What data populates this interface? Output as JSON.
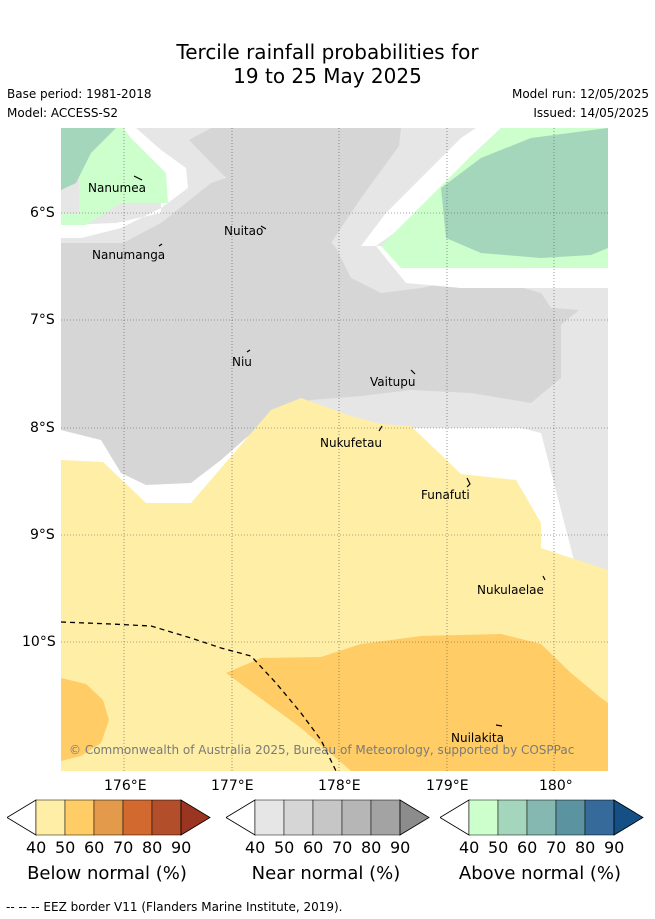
{
  "title": {
    "line1": "Tercile rainfall probabilities for",
    "line2": "19 to 25 May 2025"
  },
  "meta": {
    "base_period": "Base period: 1981-2018",
    "model": "Model: ACCESS-S2",
    "model_run": "Model run: 12/05/2025",
    "issued": "Issued: 14/05/2025"
  },
  "map": {
    "lat_labels": [
      "6°S",
      "7°S",
      "8°S",
      "9°S",
      "10°S"
    ],
    "lon_labels": [
      "176°E",
      "177°E",
      "178°E",
      "179°E",
      "180°"
    ],
    "places": [
      "Nanumea",
      "Nuitao",
      "Nanumanga",
      "Niu",
      "Vaitupu",
      "Nukufetau",
      "Funafuti",
      "Nukulaelae",
      "Nuilakita"
    ],
    "copyright": "© Commonwealth of Australia 2025, Bureau of Meteorology, supported by COSPPac"
  },
  "colorbars": [
    {
      "label": "Below normal (%)",
      "ticks": [
        "40",
        "50",
        "60",
        "70",
        "80",
        "90"
      ],
      "colors": [
        "#ffeea6",
        "#ffcc66",
        "#e39a4a",
        "#d2692f",
        "#b34e2a",
        "#9c3422"
      ]
    },
    {
      "label": "Near normal (%)",
      "ticks": [
        "40",
        "50",
        "60",
        "70",
        "80",
        "90"
      ],
      "colors": [
        "#e6e6e6",
        "#d6d6d6",
        "#c6c6c6",
        "#b6b6b6",
        "#a3a3a3",
        "#8c8c8c"
      ]
    },
    {
      "label": "Above normal (%)",
      "ticks": [
        "40",
        "50",
        "60",
        "70",
        "80",
        "90"
      ],
      "colors": [
        "#ccffcc",
        "#a3d6bb",
        "#85b8b0",
        "#5b93a0",
        "#356a9a",
        "#144f85"
      ]
    }
  ],
  "footer": "--  --  -- EEZ border V11 (Flanders Marine Institute, 2019)."
}
